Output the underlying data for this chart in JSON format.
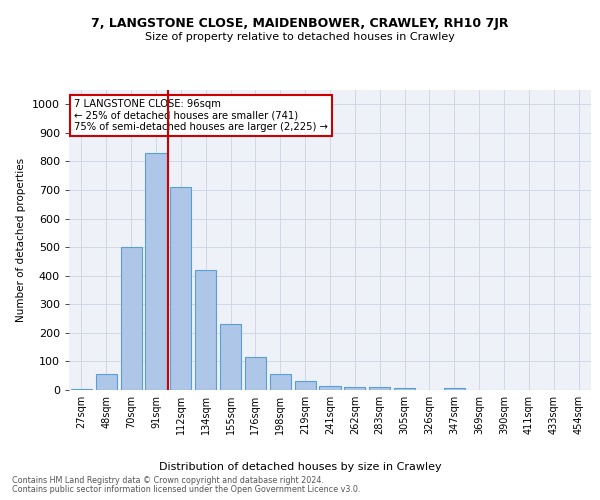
{
  "title1": "7, LANGSTONE CLOSE, MAIDENBOWER, CRAWLEY, RH10 7JR",
  "title2": "Size of property relative to detached houses in Crawley",
  "xlabel": "Distribution of detached houses by size in Crawley",
  "ylabel": "Number of detached properties",
  "categories": [
    "27sqm",
    "48sqm",
    "70sqm",
    "91sqm",
    "112sqm",
    "134sqm",
    "155sqm",
    "176sqm",
    "198sqm",
    "219sqm",
    "241sqm",
    "262sqm",
    "283sqm",
    "305sqm",
    "326sqm",
    "347sqm",
    "369sqm",
    "390sqm",
    "411sqm",
    "433sqm",
    "454sqm"
  ],
  "values": [
    5,
    57,
    500,
    830,
    710,
    420,
    230,
    117,
    57,
    30,
    14,
    12,
    10,
    6,
    0,
    7,
    0,
    0,
    0,
    0,
    0
  ],
  "bar_color": "#aec6e8",
  "bar_edge_color": "#5a9fd4",
  "annotation_line1": "7 LANGSTONE CLOSE: 96sqm",
  "annotation_line2": "← 25% of detached houses are smaller (741)",
  "annotation_line3": "75% of semi-detached houses are larger (2,225) →",
  "annotation_box_color": "#cc0000",
  "ylim": [
    0,
    1050
  ],
  "yticks": [
    0,
    100,
    200,
    300,
    400,
    500,
    600,
    700,
    800,
    900,
    1000
  ],
  "grid_color": "#d0d8e8",
  "background_color": "#eef2f8",
  "footer1": "Contains HM Land Registry data © Crown copyright and database right 2024.",
  "footer2": "Contains public sector information licensed under the Open Government Licence v3.0."
}
